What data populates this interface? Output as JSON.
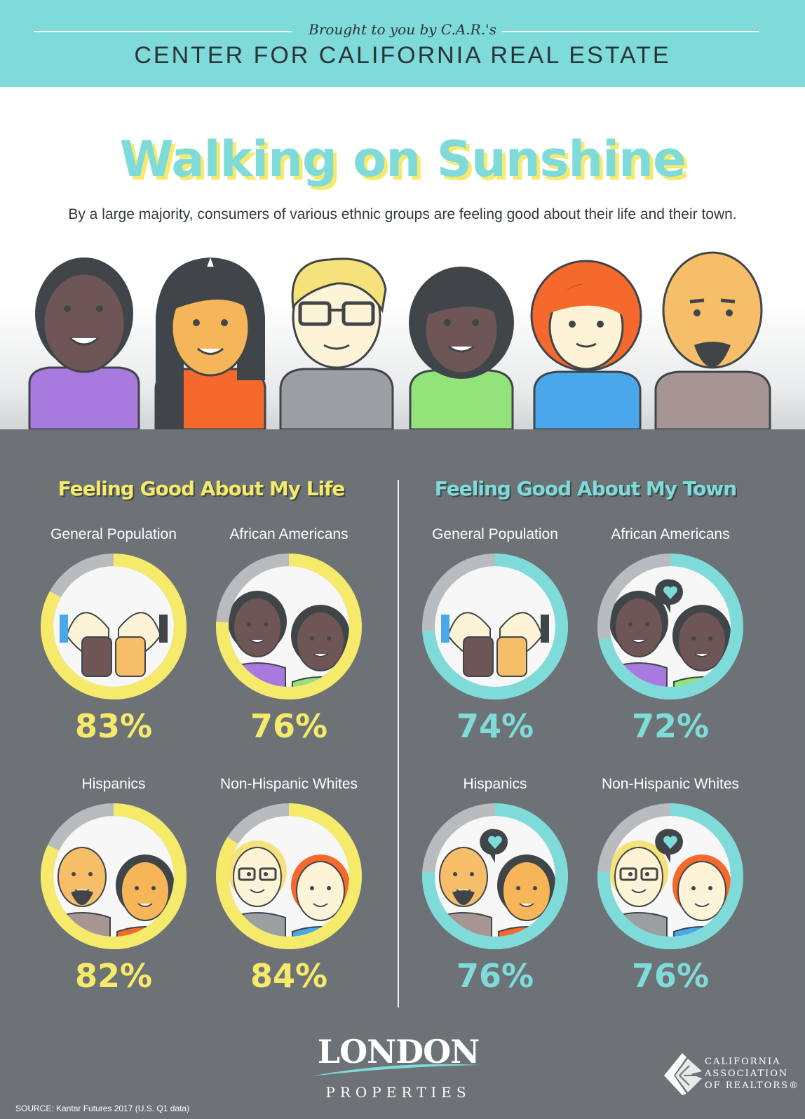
{
  "banner": {
    "subtitle": "Brought to you by C.A.R.'s",
    "title": "CENTER FOR CALIFORNIA REAL ESTATE"
  },
  "header": {
    "title": "Walking on Sunshine",
    "subtitle": "By a large majority, consumers of various ethnic groups are feeling good about their life and their town."
  },
  "colors": {
    "banner": "#7fdbd9",
    "life_accent": "#f6ea6a",
    "town_accent": "#7fdbd9",
    "panel": "#6c7276",
    "ring_base": "#b9bcbe"
  },
  "life": {
    "heading": "Feeling Good About My Life",
    "groups": [
      {
        "label": "General Population",
        "value": "83%",
        "fraction": 0.83,
        "icon": "thumbs-up-icon"
      },
      {
        "label": "African Americans",
        "value": "76%",
        "fraction": 0.76,
        "icon": "couple-icon"
      },
      {
        "label": "Hispanics",
        "value": "82%",
        "fraction": 0.82,
        "icon": "couple-icon"
      },
      {
        "label": "Non-Hispanic Whites",
        "value": "84%",
        "fraction": 0.84,
        "icon": "couple-icon"
      }
    ]
  },
  "town": {
    "heading": "Feeling Good About My Town",
    "groups": [
      {
        "label": "General Population",
        "value": "74%",
        "fraction": 0.74,
        "icon": "thumbs-up-icon"
      },
      {
        "label": "African Americans",
        "value": "72%",
        "fraction": 0.72,
        "icon": "heart-pin-icon"
      },
      {
        "label": "Hispanics",
        "value": "76%",
        "fraction": 0.76,
        "icon": "heart-pin-icon"
      },
      {
        "label": "Non-Hispanic Whites",
        "value": "76%",
        "fraction": 0.76,
        "icon": "heart-pin-icon"
      }
    ]
  },
  "footer": {
    "logo_main": "LONDON",
    "logo_sub": "PROPERTIES",
    "car_line1": "CALIFORNIA",
    "car_line2": "ASSOCIATION",
    "car_line3": "OF REALTORS®",
    "source": "SOURCE: Kantar Futures 2017 (U.S. Q1 data)"
  }
}
